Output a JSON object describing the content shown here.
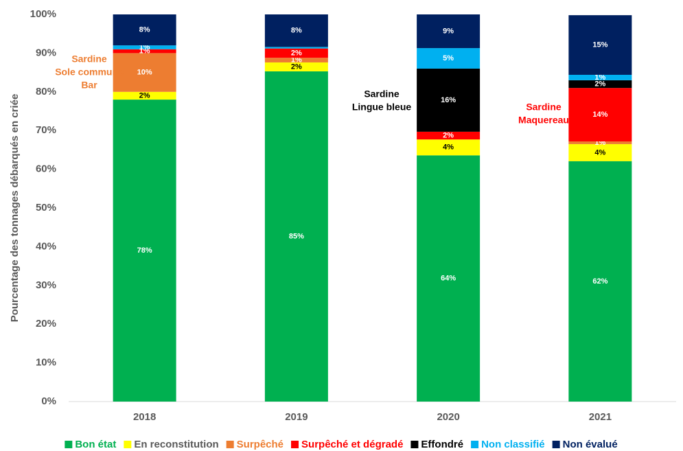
{
  "chart_data": {
    "type": "stacked_bar",
    "y_axis_label": "Pourcentage des tonnages débarqués en criée",
    "categories": [
      "2018",
      "2019",
      "2020",
      "2021"
    ],
    "ylim": [
      0,
      100
    ],
    "yticks": [
      {
        "value": 0,
        "label": "0%"
      },
      {
        "value": 10,
        "label": "10%"
      },
      {
        "value": 20,
        "label": "20%"
      },
      {
        "value": 30,
        "label": "30%"
      },
      {
        "value": 40,
        "label": "40%"
      },
      {
        "value": 50,
        "label": "50%"
      },
      {
        "value": 60,
        "label": "60%"
      },
      {
        "value": 70,
        "label": "70%"
      },
      {
        "value": 80,
        "label": "80%"
      },
      {
        "value": 90,
        "label": "90%"
      },
      {
        "value": 100,
        "label": "100%"
      }
    ],
    "series": [
      {
        "name": "Bon état",
        "color": "#00b050",
        "label_color": "#ffffff",
        "values": [
          78,
          85.3,
          63.6,
          62.1
        ],
        "value_labels": [
          "78%",
          "85%",
          "64%",
          "62%"
        ]
      },
      {
        "name": "En reconstitution",
        "color": "#ffff00",
        "label_color": "#000000",
        "values": [
          2,
          2.3,
          4.1,
          4.4
        ],
        "value_labels": [
          "2%",
          "2%",
          "4%",
          "4%"
        ]
      },
      {
        "name": "Surpêché",
        "color": "#ed7d31",
        "label_color": "#ffffff",
        "values": [
          10,
          1.2,
          0,
          0.7
        ],
        "value_labels": [
          "10%",
          "1%",
          null,
          "1%"
        ]
      },
      {
        "name": "Surpêché et dégradé",
        "color": "#ff0000",
        "label_color": "#ffffff",
        "values": [
          1,
          2.4,
          2,
          13.8
        ],
        "value_labels": [
          "1%",
          "2%",
          "2%",
          "14%"
        ]
      },
      {
        "name": "Effondré",
        "color": "#000000",
        "label_color": "#ffffff",
        "values": [
          0,
          0,
          16.3,
          2
        ],
        "value_labels": [
          null,
          null,
          "16%",
          "2%"
        ]
      },
      {
        "name": "Non classifié",
        "color": "#00b0f0",
        "label_color": "#ffffff",
        "values": [
          1,
          0.4,
          5.3,
          1.4
        ],
        "value_labels": [
          "1%",
          null,
          "5%",
          "1%"
        ]
      },
      {
        "name": "Non évalué",
        "color": "#002060",
        "label_color": "#ffffff",
        "values": [
          8,
          8.4,
          8.7,
          15.4
        ],
        "value_labels": [
          "8%",
          "8%",
          "9%",
          "15%"
        ]
      }
    ],
    "annotations": [
      {
        "lines": [
          "Sardine",
          "Sole commune",
          "Bar"
        ],
        "color": "#ed7d31"
      },
      {
        "lines": [
          "Sardine",
          "Lingue bleue"
        ],
        "color": "#000000"
      },
      {
        "lines": [
          "Sardine",
          "Maquereau"
        ],
        "color": "#ff0000"
      }
    ],
    "legend": "bottom"
  }
}
